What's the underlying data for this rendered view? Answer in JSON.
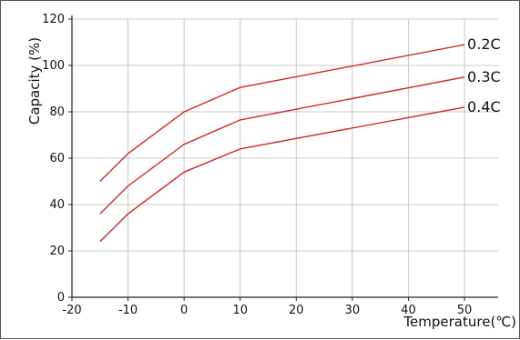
{
  "chart_data": {
    "type": "line",
    "title": "",
    "xlabel": "Temperature(℃)",
    "ylabel": "Capacity (%)",
    "xlim": [
      -20,
      56
    ],
    "ylim": [
      0,
      120
    ],
    "xticks": [
      -20,
      -10,
      0,
      10,
      20,
      30,
      40,
      50
    ],
    "xtick_labels": [
      "-20",
      "-10",
      "0",
      "10",
      "20",
      "30",
      "40",
      "50"
    ],
    "yticks": [
      0,
      20,
      40,
      60,
      80,
      100,
      120
    ],
    "ytick_labels": [
      "0",
      "20",
      "40",
      "60",
      "80",
      "100",
      "120"
    ],
    "grid": true,
    "legend": "inline labels at right end of lines",
    "line_color": "#cc2a2a",
    "grid_color": "#c8c8c8",
    "series": [
      {
        "name": "0.2C",
        "x": [
          -15,
          -10,
          0,
          10,
          50
        ],
        "y": [
          50,
          62,
          80,
          90.5,
          109
        ]
      },
      {
        "name": "0.3C",
        "x": [
          -15,
          -10,
          0,
          10,
          50
        ],
        "y": [
          36,
          48,
          66,
          76.5,
          95
        ]
      },
      {
        "name": "0.4C",
        "x": [
          -15,
          -10,
          0,
          10,
          50
        ],
        "y": [
          24,
          36,
          54,
          64,
          82
        ]
      }
    ]
  }
}
